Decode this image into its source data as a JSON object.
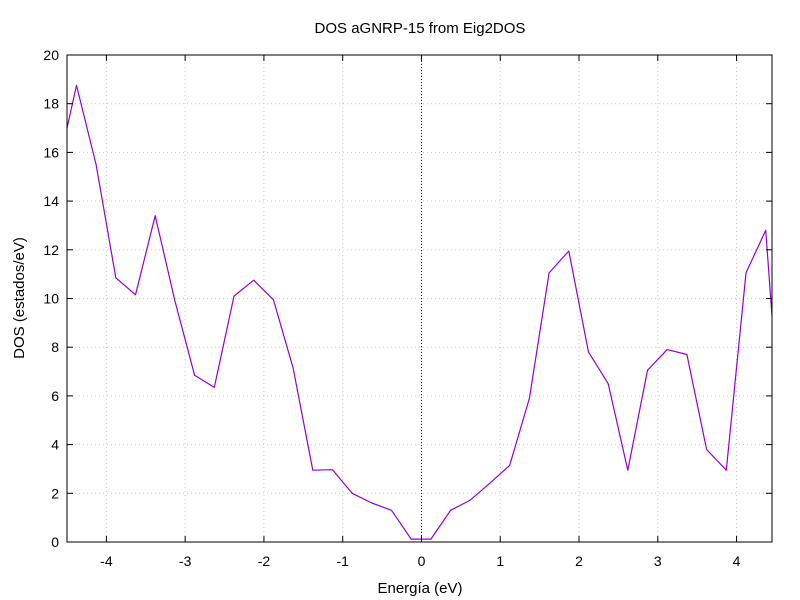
{
  "chart_data": {
    "type": "line",
    "title": "DOS aGNRP-15 from Eig2DOS",
    "xlabel": "Energía (eV)",
    "ylabel": "DOS (estados/eV)",
    "xlim": [
      -4.5,
      4.45
    ],
    "ylim": [
      0,
      20
    ],
    "xticks": [
      -4,
      -3,
      -2,
      -1,
      0,
      1,
      2,
      3,
      4
    ],
    "yticks": [
      0,
      2,
      4,
      6,
      8,
      10,
      12,
      14,
      16,
      18,
      20
    ],
    "grid": true,
    "zero_line": {
      "x": 0,
      "color": "#0000ff"
    },
    "series": [
      {
        "color": "#9400d3",
        "x": [
          -4.5,
          -4.38,
          -4.13,
          -3.88,
          -3.63,
          -3.38,
          -3.13,
          -2.88,
          -2.63,
          -2.38,
          -2.13,
          -1.88,
          -1.63,
          -1.38,
          -1.13,
          -0.88,
          -0.63,
          -0.38,
          -0.13,
          0.12,
          0.37,
          0.62,
          0.87,
          1.12,
          1.37,
          1.62,
          1.87,
          2.12,
          2.37,
          2.62,
          2.87,
          3.12,
          3.37,
          3.62,
          3.87,
          4.12,
          4.37,
          4.45
        ],
        "y": [
          17.0,
          18.75,
          15.5,
          10.85,
          10.15,
          13.4,
          9.9,
          6.85,
          6.35,
          10.1,
          10.75,
          9.95,
          7.15,
          2.95,
          2.97,
          2.0,
          1.6,
          1.3,
          0.12,
          0.12,
          1.3,
          1.72,
          2.42,
          3.15,
          5.9,
          11.05,
          11.95,
          7.8,
          6.5,
          2.95,
          7.05,
          7.9,
          7.7,
          3.8,
          2.95,
          11.05,
          12.8,
          9.3
        ]
      }
    ]
  }
}
